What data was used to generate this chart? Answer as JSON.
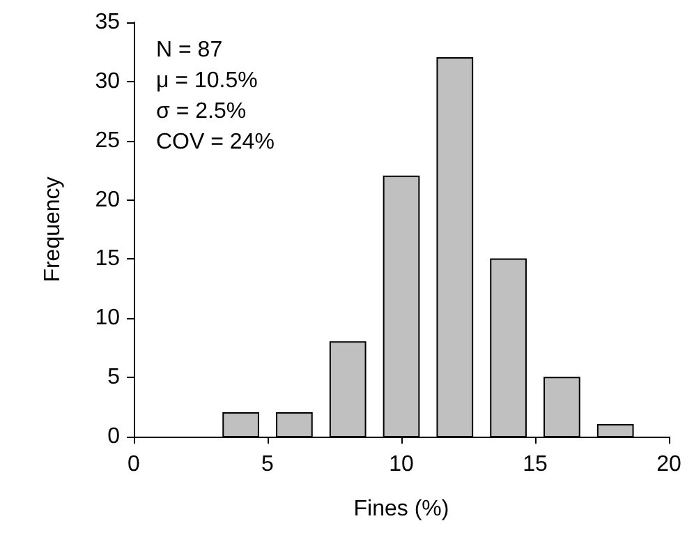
{
  "chart_data": {
    "type": "histogram",
    "xlabel": "Fines (%)",
    "ylabel": "Frequency",
    "bins": [
      3,
      5,
      7,
      9,
      11,
      13,
      15,
      17,
      19
    ],
    "values": [
      2,
      2,
      8,
      22,
      32,
      15,
      5,
      1
    ],
    "color": "#c0c0c0",
    "xlim": [
      0,
      20
    ],
    "xticks": [
      0,
      5,
      10,
      15,
      20
    ],
    "ylim": [
      0,
      35
    ],
    "yticks": [
      0,
      5,
      10,
      15,
      20,
      25,
      30,
      35
    ],
    "grid": false,
    "annotations": [
      "N = 87",
      "μ = 10.5%",
      "σ = 2.5%",
      "COV = 24%"
    ]
  }
}
